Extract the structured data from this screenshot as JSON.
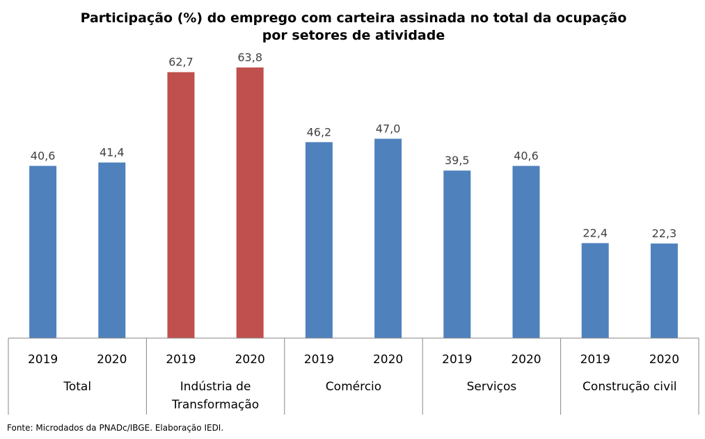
{
  "chart_data": {
    "type": "bar",
    "title": [
      "Participação (%) do emprego com carteira assinada no total da ocupação",
      "por setores de atividade"
    ],
    "groups": [
      {
        "name": [
          "Total"
        ],
        "bars": [
          {
            "year": "2019",
            "value": 40.6,
            "label": "40,6"
          },
          {
            "year": "2020",
            "value": 41.4,
            "label": "41,4"
          }
        ],
        "color": "#4F81BD"
      },
      {
        "name": [
          "Indústria de",
          "Transformação"
        ],
        "bars": [
          {
            "year": "2019",
            "value": 62.7,
            "label": "62,7"
          },
          {
            "year": "2020",
            "value": 63.8,
            "label": "63,8"
          }
        ],
        "color": "#C0504D"
      },
      {
        "name": [
          "Comércio"
        ],
        "bars": [
          {
            "year": "2019",
            "value": 46.2,
            "label": "46,2"
          },
          {
            "year": "2020",
            "value": 47.0,
            "label": "47,0"
          }
        ],
        "color": "#4F81BD"
      },
      {
        "name": [
          "Serviços"
        ],
        "bars": [
          {
            "year": "2019",
            "value": 39.5,
            "label": "39,5"
          },
          {
            "year": "2020",
            "value": 40.6,
            "label": "40,6"
          }
        ],
        "color": "#4F81BD"
      },
      {
        "name": [
          "Construção civil"
        ],
        "bars": [
          {
            "year": "2019",
            "value": 22.4,
            "label": "22,4"
          },
          {
            "year": "2020",
            "value": 22.3,
            "label": "22,3"
          }
        ],
        "color": "#4F81BD"
      }
    ],
    "ylim": [
      0,
      63.8
    ],
    "grid": false,
    "legend": "none"
  },
  "source": "Fonte: Microdados da PNADc/IBGE. Elaboração IEDI."
}
